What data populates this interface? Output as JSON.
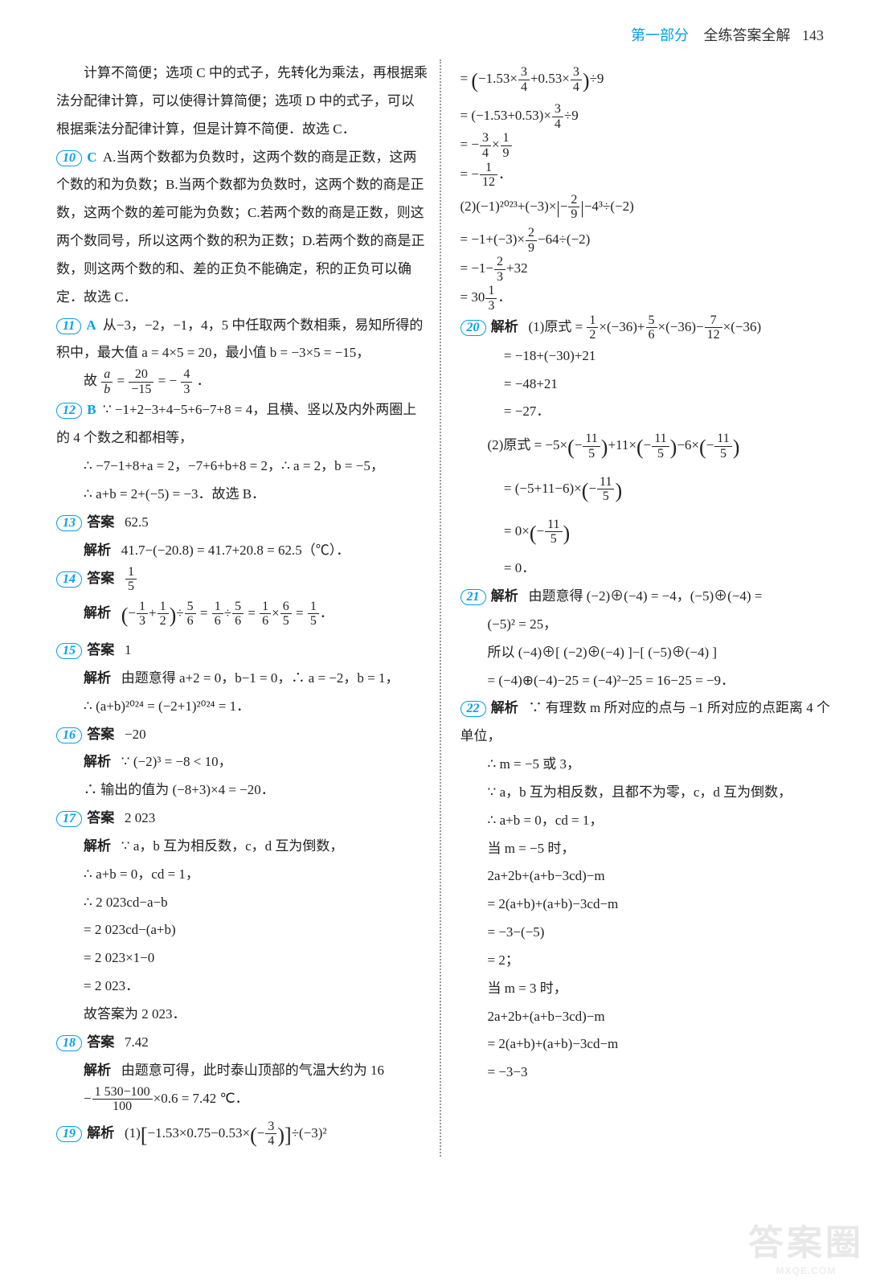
{
  "header": {
    "section": "第一部分",
    "title": "全练答案全解",
    "page": "143"
  },
  "left": {
    "intro1": "计算不简便；选项 C 中的式子，先转化为乘法，再根据乘法分配律计算，可以使得计算简便；选项 D 中的式子，可以根据乘法分配律计算，但是计算不简便．故选 C．",
    "q10num": "10",
    "q10ans": "C",
    "q10": "A.当两个数都为负数时，这两个数的商是正数，这两个数的和为负数；B.当两个数都为负数时，这两个数的商是正数，这两个数的差可能为负数；C.若两个数的商是正数，则这两个数同号，所以这两个数的积为正数；D.若两个数的商是正数，则这两个数的和、差的正负不能确定，积的正负可以确定．故选 C．",
    "q11num": "11",
    "q11ans": "A",
    "q11a": "从−3，−2，−1，4，5 中任取两个数相乘，易知所得的积中，最大值 a = 4×5 = 20，最小值 b = −3×5 = −15，",
    "q11b_pre": "故 ",
    "q11b_eq": " = ",
    "q11b_eq2": " = −",
    "q11b_end": "．",
    "q12num": "12",
    "q12ans": "B",
    "q12a": "∵ −1+2−3+4−5+6−7+8 = 4，且横、竖以及内外两圈上的 4 个数之和都相等，",
    "q12b": "∴ −7−1+8+a = 2，−7+6+b+8 = 2，∴ a = 2，b = −5，",
    "q12c": "∴ a+b = 2+(−5) = −3．故选 B．",
    "q13num": "13",
    "q13ans_label": "答案",
    "q13ans": "62.5",
    "q13jx_label": "解析",
    "q13jx": "41.7−(−20.8) = 41.7+20.8 = 62.5（℃）．",
    "q14num": "14",
    "q14ans_label": "答案",
    "q14jx_label": "解析",
    "q15num": "15",
    "q15ans_label": "答案",
    "q15ans": "1",
    "q15jx_label": "解析",
    "q15a": "由题意得 a+2 = 0，b−1 = 0，∴ a = −2，b = 1，",
    "q15b": "∴ (a+b)²⁰²⁴ = (−2+1)²⁰²⁴ = 1．",
    "q16num": "16",
    "q16ans_label": "答案",
    "q16ans": "−20",
    "q16jx_label": "解析",
    "q16a": "∵ (−2)³ = −8 < 10，",
    "q16b": "∴ 输出的值为 (−8+3)×4 = −20．",
    "q17num": "17",
    "q17ans_label": "答案",
    "q17ans": "2 023",
    "q17jx_label": "解析",
    "q17a": "∵ a，b 互为相反数，c，d 互为倒数，",
    "q17b": "∴ a+b = 0，cd = 1，",
    "q17c": "∴ 2 023cd−a−b",
    "q17d": "= 2 023cd−(a+b)",
    "q17e": "= 2 023×1−0",
    "q17f": "= 2 023．",
    "q17g": "故答案为 2 023．",
    "q18num": "18",
    "q18ans_label": "答案",
    "q18ans": "7.42",
    "q18jx_label": "解析",
    "q18a": "由题意可得，此时泰山顶部的气温大约为 16",
    "q19num": "19",
    "q19jx_label": "解析"
  },
  "right": {
    "q20num": "20",
    "q20jx_label": "解析",
    "q21num": "21",
    "q21jx_label": "解析",
    "q21a": "由题意得 (−2)⊕(−4) = −4，(−5)⊕(−4) =",
    "q21b": "(−5)² = 25，",
    "q21c": "所以 (−4)⊕[ (−2)⊕(−4) ]−[ (−5)⊕(−4) ]",
    "q21d": "= (−4)⊕(−4)−25 = (−4)²−25 = 16−25 = −9．",
    "q22num": "22",
    "q22jx_label": "解析",
    "q22a": "∵ 有理数 m 所对应的点与 −1 所对应的点距离 4 个单位，",
    "q22b": "∴ m = −5 或 3，",
    "q22c": "∵ a，b 互为相反数，且都不为零，c，d 互为倒数，",
    "q22d": "∴ a+b = 0，cd = 1，",
    "q22e": "当 m = −5 时，",
    "q22f": "2a+2b+(a+b−3cd)−m",
    "q22g": "= 2(a+b)+(a+b)−3cd−m",
    "q22h": "= −3−(−5)",
    "q22i": "= 2；",
    "q22j": "当 m = 3 时，",
    "q22k": "2a+2b+(a+b−3cd)−m",
    "q22l": "= 2(a+b)+(a+b)−3cd−m",
    "q22m": "= −3−3"
  },
  "watermark": {
    "main": "答案圈",
    "sub": "MXQE.COM"
  }
}
